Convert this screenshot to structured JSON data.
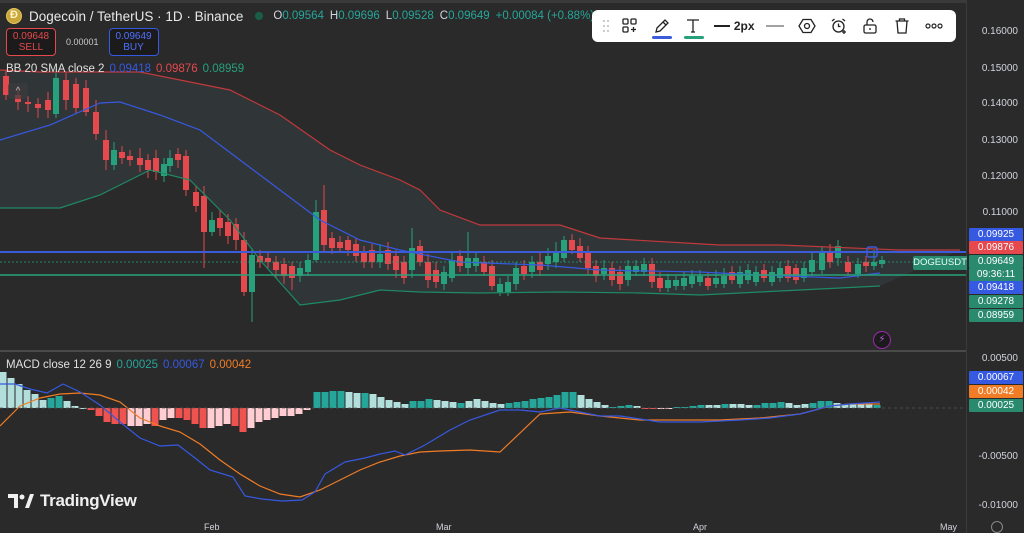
{
  "header": {
    "symbol_title": "Dogecoin / TetherUS · 1D · Binance",
    "ohlc": [
      {
        "key": "O",
        "value": "0.09564"
      },
      {
        "key": "H",
        "value": "0.09696"
      },
      {
        "key": "L",
        "value": "0.09528"
      },
      {
        "key": "C",
        "value": "0.09649"
      }
    ],
    "change": "+0.00084 (+0.88%)"
  },
  "trade": {
    "sell_price": "0.09648",
    "sell_label": "SELL",
    "spread": "0.00001",
    "buy_price": "0.09649",
    "buy_label": "BUY"
  },
  "bb_legend": {
    "name": "BB 20 SMA close 2",
    "basis": "0.09418",
    "upper": "0.09876",
    "lower": "0.08959"
  },
  "macd_legend": {
    "name": "MACD close 12 26 9",
    "histogram": "0.00025",
    "macd": "0.00067",
    "signal": "0.00042"
  },
  "toolbar": {
    "items": [
      {
        "name": "drag-handle-icon"
      },
      {
        "name": "templates-icon"
      },
      {
        "name": "pencil-icon",
        "underline": "#3b5bdb"
      },
      {
        "name": "text-icon",
        "underline": "#26a17b"
      },
      {
        "name": "line-width",
        "label": "2px"
      },
      {
        "name": "line-style-icon"
      },
      {
        "name": "settings-hexagon-icon"
      },
      {
        "name": "alarm-add-icon"
      },
      {
        "name": "unlock-icon"
      },
      {
        "name": "trash-icon"
      },
      {
        "name": "more-icon"
      }
    ],
    "line_width_label": "2px"
  },
  "price_axis": {
    "ticks": [
      "0.16000",
      "0.15000",
      "0.14000",
      "0.13000",
      "0.12000",
      "0.11000"
    ],
    "badges": [
      {
        "label": "0.09925",
        "color": "#3659e2"
      },
      {
        "label": "0.09876",
        "color": "#e5484d"
      },
      {
        "label": "0.09649",
        "color": "#2a8a6e"
      },
      {
        "label": "09:36:11",
        "color": "#2a8a6e"
      },
      {
        "label": "0.09418",
        "color": "#3659e2"
      },
      {
        "label": "0.09278",
        "color": "#2a8a6e"
      },
      {
        "label": "0.08959",
        "color": "#2a8a6e"
      }
    ],
    "symbol_tag": "DOGEUSDT"
  },
  "macd_axis": {
    "ticks": [
      "0.00500",
      "-0.00500",
      "-0.01000"
    ],
    "badges": [
      {
        "label": "0.00067",
        "color": "#3659e2"
      },
      {
        "label": "0.00042",
        "color": "#f07c25"
      },
      {
        "label": "0.00025",
        "color": "#2a8a6e"
      }
    ]
  },
  "time_axis": {
    "labels": [
      "Feb",
      "Mar",
      "Apr",
      "May"
    ]
  },
  "branding": {
    "logo_text": "TradingView"
  },
  "colors": {
    "up": "#26a17b",
    "down": "#e5484d",
    "bb_basis": "#3659e2",
    "bb_upper": "#c1393c",
    "bb_lower": "#1f8a65",
    "macd_line": "#3659e2",
    "signal_line": "#f07c25",
    "hist_up_strong": "#26a69a",
    "hist_up_weak": "#b2dfdb",
    "hist_down_strong": "#ef5350",
    "hist_down_weak": "#ffcdd2"
  },
  "chart_data": {
    "type": "candlestick",
    "title": "Dogecoin / TetherUS · 1D · Binance",
    "ylim": [
      0.085,
      0.165
    ],
    "x_labels": [
      "Feb",
      "Mar",
      "Apr",
      "May"
    ],
    "horizontal_lines": [
      {
        "price": 0.09925,
        "color": "#3659e2"
      },
      {
        "price": 0.09278,
        "color": "#26a17b"
      }
    ],
    "last_close": 0.09649
  }
}
